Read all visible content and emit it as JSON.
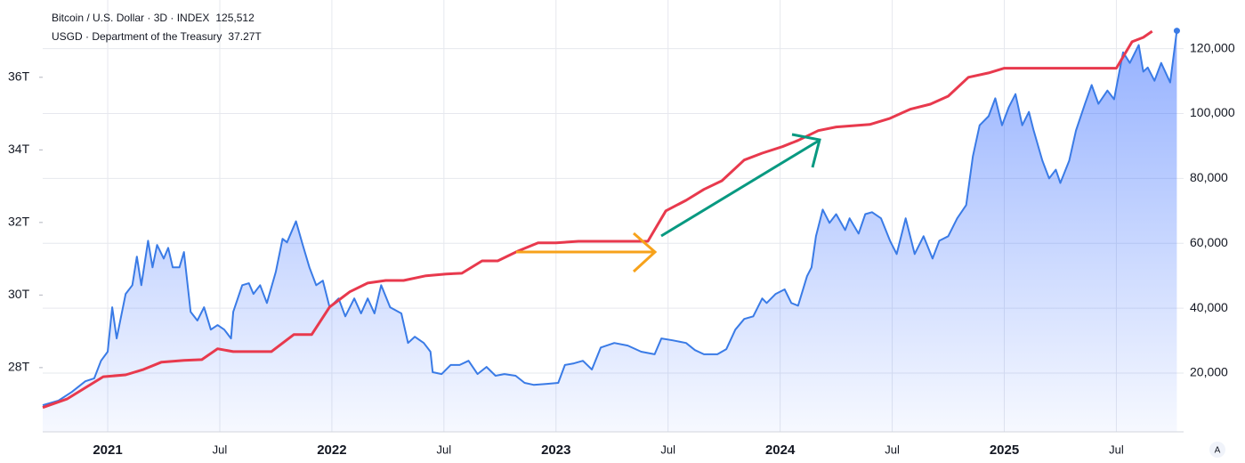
{
  "chart_data": {
    "type": "line",
    "header": [
      {
        "text": "Bitcoin / U.S. Dollar · 3D · INDEX",
        "value_text": "125,512"
      },
      {
        "text": "USGD · Department of the Treasury",
        "value_text": "37.27T"
      }
    ],
    "autoscale_button": "A",
    "xlim": [
      2020.71,
      2025.8
    ],
    "xticks": [
      {
        "value": 2021,
        "label": "2021"
      },
      {
        "value": 2021.5,
        "label": "Jul"
      },
      {
        "value": 2022,
        "label": "2022"
      },
      {
        "value": 2022.5,
        "label": "Jul"
      },
      {
        "value": 2023,
        "label": "2023"
      },
      {
        "value": 2023.5,
        "label": "Jul"
      },
      {
        "value": 2024,
        "label": "2024"
      },
      {
        "value": 2024.5,
        "label": "Jul"
      },
      {
        "value": 2025,
        "label": "2025"
      },
      {
        "value": 2025.5,
        "label": "Jul"
      }
    ],
    "ylim": [
      1900,
      135000
    ],
    "yticks": [
      {
        "value": 20000,
        "label": "20,000"
      },
      {
        "value": 40000,
        "label": "40,000"
      },
      {
        "value": 60000,
        "label": "60,000"
      },
      {
        "value": 80000,
        "label": "80,000"
      },
      {
        "value": 100000,
        "label": "100,000"
      },
      {
        "value": 120000,
        "label": "120,000"
      }
    ],
    "y2lim": [
      26.23,
      38.13
    ],
    "y2ticks": [
      {
        "value": 28,
        "label": "28T"
      },
      {
        "value": 30,
        "label": "30T"
      },
      {
        "value": 32,
        "label": "32T"
      },
      {
        "value": 34,
        "label": "34T"
      },
      {
        "value": 36,
        "label": "36T"
      }
    ],
    "grid": true,
    "series": [
      {
        "name": "Bitcoin / U.S. Dollar",
        "color": "#3a7be6",
        "area": true,
        "x": [
          2020.71,
          2020.78,
          2020.84,
          2020.9,
          2020.94,
          2020.97,
          2021.0,
          2021.02,
          2021.04,
          2021.08,
          2021.11,
          2021.13,
          2021.15,
          2021.18,
          2021.2,
          2021.22,
          2021.25,
          2021.27,
          2021.29,
          2021.32,
          2021.34,
          2021.37,
          2021.4,
          2021.43,
          2021.46,
          2021.49,
          2021.52,
          2021.55,
          2021.56,
          2021.6,
          2021.63,
          2021.65,
          2021.68,
          2021.71,
          2021.75,
          2021.78,
          2021.8,
          2021.84,
          2021.87,
          2021.9,
          2021.93,
          2021.96,
          2021.99,
          2022.03,
          2022.06,
          2022.1,
          2022.13,
          2022.16,
          2022.19,
          2022.22,
          2022.26,
          2022.31,
          2022.34,
          2022.37,
          2022.41,
          2022.44,
          2022.45,
          2022.49,
          2022.53,
          2022.57,
          2022.61,
          2022.65,
          2022.69,
          2022.73,
          2022.77,
          2022.82,
          2022.86,
          2022.9,
          2022.96,
          2023.01,
          2023.04,
          2023.08,
          2023.12,
          2023.16,
          2023.2,
          2023.26,
          2023.32,
          2023.38,
          2023.44,
          2023.47,
          2023.52,
          2023.58,
          2023.62,
          2023.66,
          2023.72,
          2023.76,
          2023.8,
          2023.84,
          2023.88,
          2023.92,
          2023.94,
          2023.98,
          2024.02,
          2024.05,
          2024.08,
          2024.12,
          2024.14,
          2024.16,
          2024.19,
          2024.22,
          2024.25,
          2024.29,
          2024.31,
          2024.35,
          2024.38,
          2024.41,
          2024.45,
          2024.49,
          2024.52,
          2024.56,
          2024.6,
          2024.64,
          2024.68,
          2024.71,
          2024.75,
          2024.79,
          2024.83,
          2024.86,
          2024.89,
          2024.93,
          2024.96,
          2024.99,
          2025.02,
          2025.05,
          2025.08,
          2025.11,
          2025.13,
          2025.17,
          2025.2,
          2025.23,
          2025.25,
          2025.29,
          2025.32,
          2025.36,
          2025.39,
          2025.42,
          2025.46,
          2025.49,
          2025.53,
          2025.56,
          2025.6,
          2025.62,
          2025.64,
          2025.67,
          2025.7,
          2025.74,
          2025.77
        ],
        "values": [
          10100,
          11500,
          14200,
          17500,
          18400,
          23800,
          26600,
          40300,
          30700,
          44400,
          47100,
          55900,
          47100,
          60800,
          52600,
          59500,
          55300,
          58600,
          52600,
          52600,
          57300,
          38900,
          36200,
          40300,
          33400,
          34800,
          33400,
          30700,
          38900,
          47100,
          47700,
          44400,
          47100,
          41600,
          51200,
          61400,
          60300,
          66800,
          59500,
          52600,
          47100,
          48500,
          40300,
          43000,
          37500,
          43000,
          38400,
          43000,
          38400,
          47100,
          40300,
          38400,
          29300,
          31200,
          29300,
          26600,
          20300,
          19700,
          22500,
          22500,
          23800,
          19700,
          21900,
          19200,
          19700,
          19200,
          17000,
          16400,
          16700,
          17000,
          22500,
          23000,
          23800,
          21100,
          27900,
          29300,
          28500,
          26600,
          25800,
          30700,
          30100,
          29300,
          27100,
          25800,
          25800,
          27400,
          33400,
          36700,
          37500,
          43000,
          41600,
          44400,
          45800,
          41600,
          40800,
          49900,
          52600,
          62200,
          70400,
          66300,
          69000,
          64100,
          67700,
          63000,
          69000,
          69600,
          67700,
          60800,
          56700,
          67700,
          56700,
          62200,
          55300,
          60800,
          62200,
          67700,
          71800,
          86800,
          96400,
          99200,
          104700,
          96400,
          101900,
          106000,
          96400,
          100500,
          95100,
          85500,
          80000,
          82700,
          78600,
          85500,
          94800,
          103000,
          108800,
          103000,
          107100,
          104400,
          118900,
          115600,
          121100,
          112900,
          114200,
          110100,
          115600,
          109600,
          125512
        ]
      },
      {
        "name": "USGD · Department of the Treasury",
        "color": "#e8394d",
        "axis": "y2",
        "x": [
          2020.71,
          2020.82,
          2020.98,
          2021.08,
          2021.16,
          2021.24,
          2021.34,
          2021.42,
          2021.49,
          2021.56,
          2021.73,
          2021.83,
          2021.91,
          2021.99,
          2022.08,
          2022.16,
          2022.24,
          2022.32,
          2022.42,
          2022.51,
          2022.58,
          2022.67,
          2022.74,
          2022.83,
          2022.92,
          2023.0,
          2023.1,
          2023.3,
          2023.41,
          2023.49,
          2023.58,
          2023.66,
          2023.74,
          2023.84,
          2023.92,
          2024.01,
          2024.08,
          2024.17,
          2024.25,
          2024.4,
          2024.49,
          2024.58,
          2024.67,
          2024.75,
          2024.84,
          2024.93,
          2025.0,
          2025.09,
          2025.29,
          2025.5,
          2025.57,
          2025.62,
          2025.66
        ],
        "values": [
          26.9,
          27.14,
          27.75,
          27.8,
          27.95,
          28.15,
          28.2,
          28.22,
          28.52,
          28.44,
          28.44,
          28.91,
          28.91,
          29.67,
          30.09,
          30.33,
          30.4,
          30.4,
          30.53,
          30.58,
          30.6,
          30.94,
          30.94,
          31.21,
          31.44,
          31.44,
          31.48,
          31.48,
          31.48,
          32.32,
          32.61,
          32.91,
          33.15,
          33.72,
          33.91,
          34.09,
          34.26,
          34.53,
          34.63,
          34.7,
          34.87,
          35.12,
          35.26,
          35.48,
          36.0,
          36.12,
          36.25,
          36.25,
          36.25,
          36.25,
          36.98,
          37.1,
          37.27
        ]
      }
    ]
  }
}
